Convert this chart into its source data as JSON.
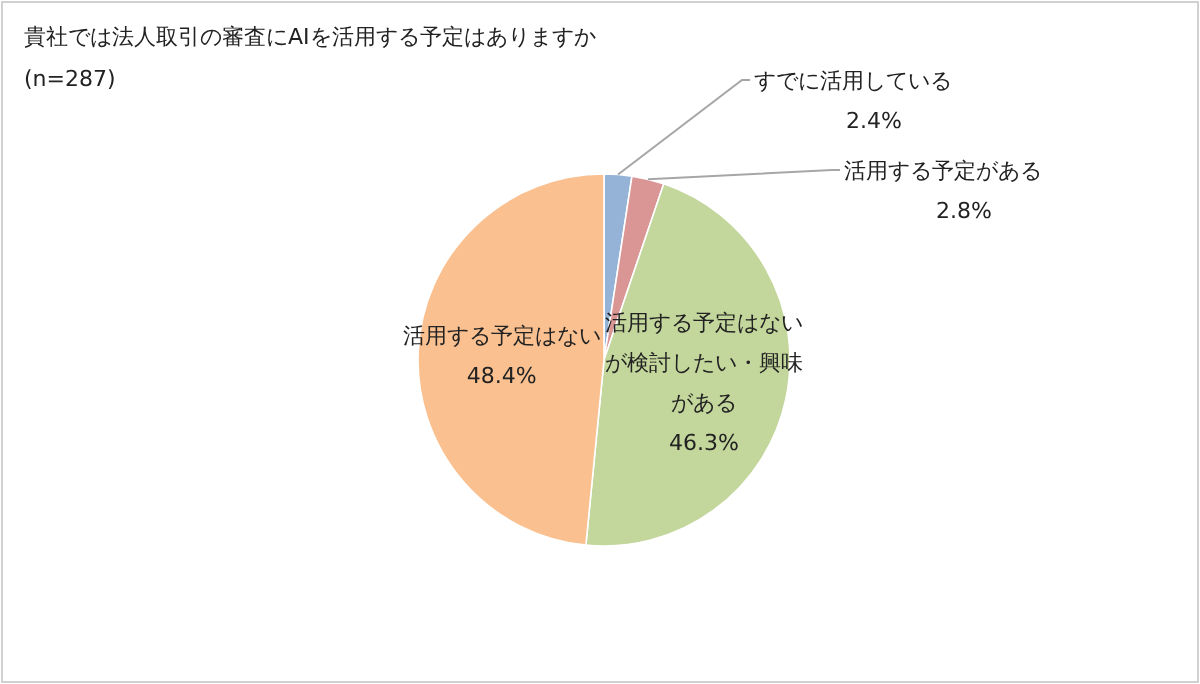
{
  "chart_data": {
    "type": "pie",
    "title": "貴社では法人取引の審査にAIを活用する予定はありますか",
    "subtitle": "(n=287)",
    "categories": [
      "すでに活用している",
      "活用する予定がある",
      "活用する予定はないが検討したい・興味がある",
      "活用する予定はない"
    ],
    "values": [
      2.4,
      2.8,
      46.3,
      48.4
    ],
    "colors": [
      "#95b3d7",
      "#d99694",
      "#c3d69b",
      "#fac090"
    ],
    "value_labels": [
      "2.4%",
      "2.8%",
      "46.3%",
      "48.4%"
    ]
  }
}
